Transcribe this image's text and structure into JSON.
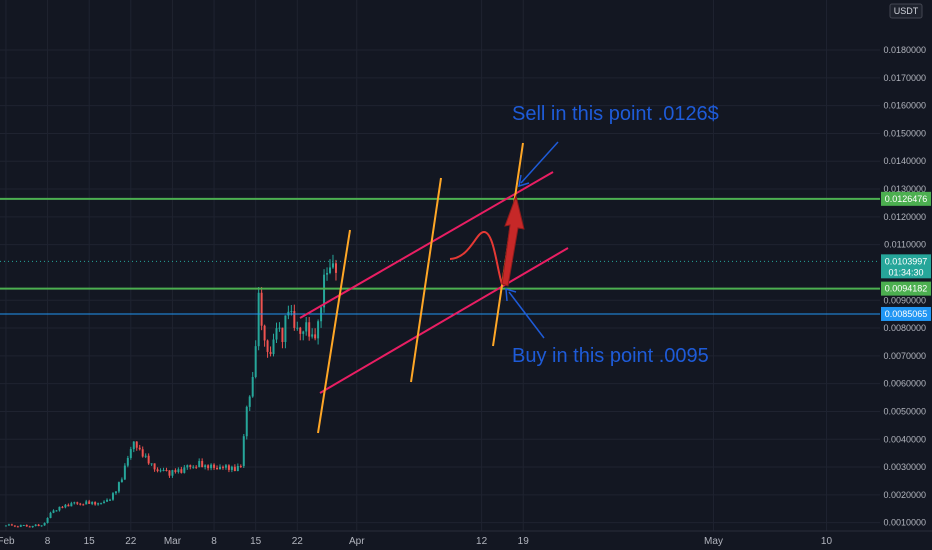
{
  "chart_data": {
    "type": "candlestick",
    "currency_label": "USDT",
    "y_ticks": [
      "0.0010000",
      "0.0020000",
      "0.0030000",
      "0.0040000",
      "0.0050000",
      "0.0060000",
      "0.0070000",
      "0.0080000",
      "0.0090000",
      "0.0110000",
      "0.0120000",
      "0.0130000",
      "0.0140000",
      "0.0150000",
      "0.0160000",
      "0.0170000",
      "0.0180000"
    ],
    "y_tick_values": [
      0.001,
      0.002,
      0.003,
      0.004,
      0.005,
      0.006,
      0.007,
      0.008,
      0.009,
      0.011,
      0.012,
      0.013,
      0.014,
      0.015,
      0.016,
      0.017,
      0.018
    ],
    "ylim": [
      0.0007,
      0.0198
    ],
    "x_ticks": [
      "Feb",
      "8",
      "15",
      "22",
      "Mar",
      "8",
      "15",
      "22",
      "Apr",
      "12",
      "19",
      "May",
      "10"
    ],
    "x_tick_days": [
      1,
      8,
      15,
      22,
      29,
      36,
      43,
      50,
      60,
      81,
      88,
      120,
      139
    ],
    "xlim": [
      0,
      148
    ],
    "series": [
      {
        "kind": "candles",
        "x": [
          1,
          3,
          5,
          7,
          8,
          9,
          10,
          11,
          12,
          13,
          14,
          15,
          16,
          17,
          18,
          19,
          20,
          21,
          22,
          23,
          24,
          25,
          26,
          27,
          28,
          29,
          30,
          31,
          32,
          33,
          34,
          35,
          36,
          37,
          38,
          39,
          40,
          41,
          42,
          43,
          44,
          45,
          46,
          47,
          48,
          49,
          50,
          51,
          52,
          53,
          54,
          55,
          56
        ],
        "close": [
          0.0009,
          0.0009,
          0.0009,
          0.001,
          0.0014,
          0.0015,
          0.0016,
          0.0016,
          0.0017,
          0.0016,
          0.0017,
          0.0017,
          0.0017,
          0.0018,
          0.0019,
          0.0022,
          0.0026,
          0.0033,
          0.0038,
          0.0035,
          0.0033,
          0.0031,
          0.0029,
          0.003,
          0.0028,
          0.0029,
          0.0028,
          0.003,
          0.0029,
          0.0031,
          0.003,
          0.0031,
          0.003,
          0.0031,
          0.003,
          0.0029,
          0.003,
          0.005,
          0.006,
          0.009,
          0.0075,
          0.0072,
          0.0083,
          0.0078,
          0.0088,
          0.008,
          0.0076,
          0.0079,
          0.0075,
          0.0081,
          0.01,
          0.0105,
          0.0103997
        ]
      }
    ],
    "horizontal_levels": [
      {
        "value": 0.0126476,
        "label": "0.0126476",
        "color": "#4caf50"
      },
      {
        "value": 0.0094182,
        "label": "0.0094182",
        "color": "#4caf50"
      },
      {
        "value": 0.0085065,
        "label": "0.0085065",
        "color": "#2196f3"
      }
    ],
    "current_price": {
      "value": 0.0103997,
      "label": "0.0103997",
      "countdown": "01:34:30",
      "color": "#26a69a"
    },
    "annotations": [
      {
        "text": "Sell in this point .0126$"
      },
      {
        "text": "Buy in this point .0095"
      }
    ],
    "colors": {
      "up": "#26a69a",
      "down": "#ef5350",
      "channel": "#e91e63",
      "fib": "#ffa726",
      "arrow": "#c62828",
      "text": "#1e5bd8"
    }
  }
}
